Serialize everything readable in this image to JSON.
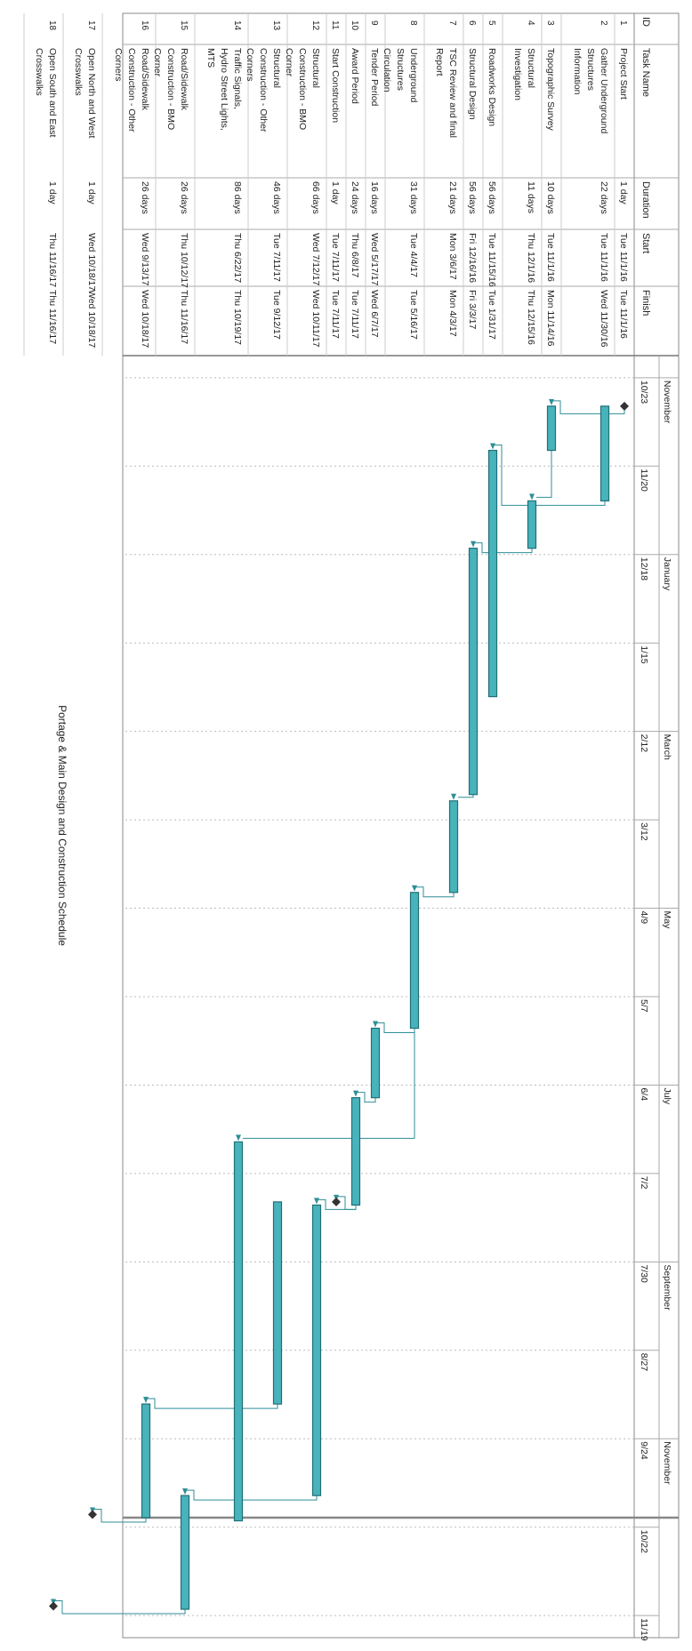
{
  "chart_data": {
    "type": "gantt",
    "title": "Portage & Main Design and Construction Schedule",
    "columns": [
      "ID",
      "Task Name",
      "Duration",
      "Start",
      "Finish"
    ],
    "months": [
      "November",
      "January",
      "March",
      "May",
      "July",
      "September",
      "November"
    ],
    "ticks": [
      "10/23",
      "11/20",
      "12/18",
      "1/15",
      "2/12",
      "3/12",
      "4/9",
      "5/7",
      "6/4",
      "7/2",
      "7/30",
      "8/27",
      "9/24",
      "10/22",
      "11/19"
    ],
    "tasks": [
      {
        "id": "1",
        "name": "Project Start",
        "duration": "1 day",
        "start": "Tue 11/1/16",
        "finish": "Tue 11/1/16",
        "milestone": true
      },
      {
        "id": "2",
        "name": "Gather Underground Structures Information",
        "duration": "22 days",
        "start": "Tue 11/1/16",
        "finish": "Wed 11/30/16"
      },
      {
        "id": "3",
        "name": "Topographic Survey",
        "duration": "10 days",
        "start": "Tue 11/1/16",
        "finish": "Mon 11/14/16"
      },
      {
        "id": "4",
        "name": "Structural Investigation",
        "duration": "11 days",
        "start": "Thu 12/1/16",
        "finish": "Thu 12/15/16"
      },
      {
        "id": "5",
        "name": "Roadworks Design",
        "duration": "56 days",
        "start": "Tue 11/15/16",
        "finish": "Tue 1/31/17"
      },
      {
        "id": "6",
        "name": "Structural Design",
        "duration": "56 days",
        "start": "Fri 12/16/16",
        "finish": "Fri 3/3/17"
      },
      {
        "id": "7",
        "name": "TSC Review and final Report",
        "duration": "21 days",
        "start": "Mon 3/6/17",
        "finish": "Mon 4/3/17"
      },
      {
        "id": "8",
        "name": "Underground Structures Circulation",
        "duration": "31 days",
        "start": "Tue 4/4/17",
        "finish": "Tue 5/16/17"
      },
      {
        "id": "9",
        "name": "Tender Period",
        "duration": "16 days",
        "start": "Wed 5/17/17",
        "finish": "Wed 6/7/17"
      },
      {
        "id": "10",
        "name": "Award Period",
        "duration": "24 days",
        "start": "Thu 6/8/17",
        "finish": "Tue 7/11/17"
      },
      {
        "id": "11",
        "name": "Start Construction",
        "duration": "1 day",
        "start": "Tue 7/11/17",
        "finish": "Tue 7/11/17",
        "milestone": true
      },
      {
        "id": "12",
        "name": "Structural Construction - BMO Corner",
        "duration": "66 days",
        "start": "Wed 7/12/17",
        "finish": "Wed 10/11/17"
      },
      {
        "id": "13",
        "name": "Structural Construction - Other Corners",
        "duration": "46 days",
        "start": "Tue 7/11/17",
        "finish": "Tue 9/12/17"
      },
      {
        "id": "14",
        "name": "Traffic Signals, Hydro Street Lights, MTS",
        "duration": "86 days",
        "start": "Thu 6/22/17",
        "finish": "Thu 10/19/17"
      },
      {
        "id": "15",
        "name": "Road/Sidewalk Construction - BMO Corner",
        "duration": "26 days",
        "start": "Thu 10/12/17",
        "finish": "Thu 11/16/17"
      },
      {
        "id": "16",
        "name": "Road/Sidewalk Construction - Other Corners",
        "duration": "26 days",
        "start": "Wed 9/13/17",
        "finish": "Wed 10/18/17"
      },
      {
        "id": "17",
        "name": "Open North and West Crosswalks",
        "duration": "1 day",
        "start": "Wed 10/18/17",
        "finish": "Wed 10/18/17",
        "milestone": true
      },
      {
        "id": "18",
        "name": "Open South and East Crosswalks",
        "duration": "1 day",
        "start": "Thu 11/16/17",
        "finish": "Thu 11/16/17",
        "milestone": true
      }
    ],
    "colors": {
      "bar": "#49b3bb",
      "bar_edge": "#1f6f78",
      "link": "#2f8e96",
      "grid": "#bbbbbb",
      "text": "#222222"
    }
  }
}
